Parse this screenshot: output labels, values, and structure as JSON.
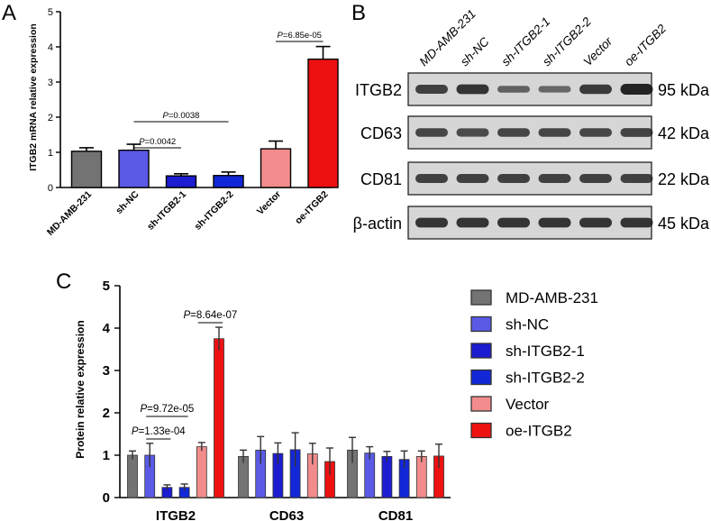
{
  "colors": {
    "MD-AMB-231": "#737373",
    "sh-NC": "#5a5ae6",
    "sh-ITGB2-1": "#1c1cd0",
    "sh-ITGB2-2": "#1228d8",
    "Vector": "#f28c8c",
    "oe-ITGB2": "#ee1111"
  },
  "panel_a": {
    "letter": "A",
    "chart_data": {
      "type": "bar",
      "categories": [
        "MD-AMB-231",
        "sh-NC",
        "sh-ITGB2-1",
        "sh-ITGB2-2",
        "Vector",
        "oe-ITGB2"
      ],
      "values": [
        1.03,
        1.06,
        0.33,
        0.34,
        1.1,
        3.65
      ],
      "errors": [
        0.1,
        0.17,
        0.06,
        0.1,
        0.22,
        0.36
      ],
      "ylabel": "ITGB2 mRNA relative expression",
      "ylim": [
        0,
        5
      ],
      "yticks": [
        "0",
        "1",
        "2",
        "3",
        "4",
        "5"
      ],
      "annotations": [
        {
          "text": "P=6.85e-05",
          "from": 4,
          "to": 5
        },
        {
          "text": "P=0.0038",
          "from": 1,
          "to": 3
        },
        {
          "text": "P=0.0042",
          "from": 1,
          "to": 2
        }
      ]
    }
  },
  "panel_b": {
    "letter": "B",
    "lanes": [
      "MD-AMB-231",
      "sh-NC",
      "sh-ITGB2-1",
      "sh-ITGB2-2",
      "Vector",
      "oe-ITGB2"
    ],
    "blots": [
      {
        "name": "ITGB2",
        "size": "95 kDa",
        "intensity": [
          0.75,
          0.85,
          0.45,
          0.4,
          0.8,
          1.0
        ]
      },
      {
        "name": "CD63",
        "size": "42 kDa",
        "intensity": [
          0.7,
          0.65,
          0.7,
          0.7,
          0.7,
          0.72
        ]
      },
      {
        "name": "CD81",
        "size": "22 kDa",
        "intensity": [
          0.75,
          0.75,
          0.75,
          0.75,
          0.75,
          0.75
        ]
      },
      {
        "name": "β-actin",
        "size": "45 kDa",
        "intensity": [
          0.85,
          0.85,
          0.85,
          0.85,
          0.85,
          0.85
        ]
      }
    ]
  },
  "panel_c": {
    "letter": "C",
    "chart_data": {
      "type": "bar",
      "categories": [
        "ITGB2",
        "CD63",
        "CD81"
      ],
      "series": [
        {
          "name": "MD-AMB-231",
          "values": [
            1.0,
            0.97,
            1.12
          ],
          "errors": [
            0.1,
            0.15,
            0.3
          ]
        },
        {
          "name": "sh-NC",
          "values": [
            1.0,
            1.12,
            1.05
          ],
          "errors": [
            0.28,
            0.32,
            0.15
          ]
        },
        {
          "name": "sh-ITGB2-1",
          "values": [
            0.24,
            1.04,
            0.97
          ],
          "errors": [
            0.06,
            0.25,
            0.12
          ]
        },
        {
          "name": "sh-ITGB2-2",
          "values": [
            0.24,
            1.13,
            0.9
          ],
          "errors": [
            0.08,
            0.4,
            0.2
          ]
        },
        {
          "name": "Vector",
          "values": [
            1.2,
            1.03,
            0.97
          ],
          "errors": [
            0.1,
            0.25,
            0.13
          ]
        },
        {
          "name": "oe-ITGB2",
          "values": [
            3.75,
            0.85,
            0.98
          ],
          "errors": [
            0.27,
            0.32,
            0.28
          ]
        }
      ],
      "ylabel": "Protein relative expression",
      "ylim": [
        0,
        5
      ],
      "yticks": [
        "0",
        "1",
        "2",
        "3",
        "4",
        "5"
      ],
      "legend_position": "right",
      "annotations": [
        {
          "text": "P=8.64e-07",
          "group": 0,
          "from": 4,
          "to": 5
        },
        {
          "text": "P=9.72e-05",
          "group": 0,
          "from": 1,
          "to": 3
        },
        {
          "text": "P=1.33e-04",
          "group": 0,
          "from": 1,
          "to": 2
        }
      ]
    }
  }
}
